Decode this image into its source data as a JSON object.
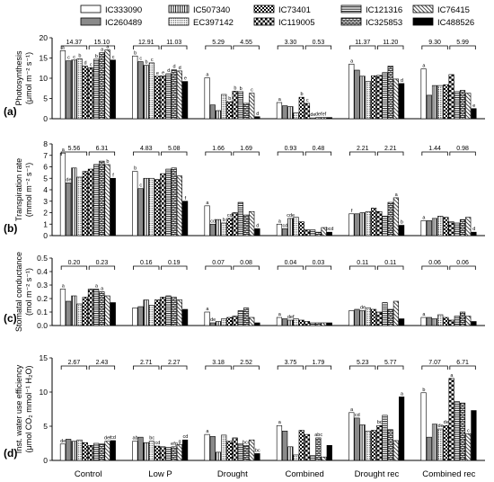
{
  "chart_data": {
    "type": "bar",
    "legend": {
      "placement": "top",
      "entries": [
        "IC333090",
        "IC507340",
        "IC73401",
        "IC121316",
        "IC76415",
        "IC260489",
        "EC397142",
        "IC119005",
        "IC325853",
        "IC488526"
      ]
    },
    "genotypes": [
      "IC333090",
      "IC260489",
      "IC507340",
      "EC397142",
      "IC73401",
      "IC119005",
      "IC121316",
      "IC325853",
      "IC76415",
      "IC488526"
    ],
    "categories": [
      "Control",
      "Low P",
      "Drought",
      "Combined",
      "Drought rec",
      "Combined rec"
    ],
    "panels": [
      {
        "id": "(a)",
        "ylabel": "Photosynthesis",
        "ylabel2": "(μmol m⁻² s⁻¹)",
        "ylim": [
          0,
          20
        ],
        "yticks": [
          "0",
          "5",
          "10",
          "15",
          "20"
        ],
        "brackets": [
          [
            "14.37",
            "15.10"
          ],
          [
            "12.91",
            "11.03"
          ],
          [
            "5.29",
            "4.55"
          ],
          [
            "3.30",
            "0.53"
          ],
          [
            "11.37",
            "11.20"
          ],
          [
            "9.30",
            "5.99"
          ]
        ],
        "values": [
          [
            16.8,
            14.3,
            14.5,
            14.8,
            13.0,
            12.6,
            14.7,
            16.3,
            17.0,
            14.5
          ],
          [
            15.5,
            14.1,
            13.2,
            13.8,
            10.5,
            10.6,
            11.1,
            12.1,
            11.8,
            9.2
          ],
          [
            10.1,
            3.4,
            2.0,
            6.0,
            4.2,
            6.8,
            6.7,
            3.8,
            6.3,
            0.5
          ],
          [
            4.0,
            3.2,
            3.0,
            1.4,
            5.3,
            3.8,
            0.2,
            0.3,
            0.3,
            0.3
          ],
          [
            13.5,
            12.0,
            10.5,
            9.2,
            10.6,
            10.7,
            11.4,
            13.0,
            9.8,
            8.7
          ],
          [
            12.3,
            5.8,
            8.2,
            8.2,
            8.4,
            10.9,
            6.7,
            7.0,
            6.3,
            2.5
          ]
        ],
        "letters": [
          [
            "a",
            "c",
            "c",
            "b",
            "d",
            "c",
            "b",
            "a",
            "a",
            "c"
          ],
          [
            "b",
            "c",
            "b",
            "c",
            "e",
            "e",
            "d",
            "d",
            "d",
            "e"
          ],
          [
            "a",
            "",
            "",
            "",
            "b",
            "b",
            "b",
            "",
            "c",
            "d"
          ],
          [
            "a",
            "",
            "",
            "",
            "b",
            "c",
            "de",
            "def",
            "ef",
            ""
          ],
          [
            "a",
            "",
            "",
            "",
            "",
            "",
            "",
            "",
            "",
            "d"
          ],
          [
            "a",
            "",
            "",
            "",
            "",
            "",
            "",
            "",
            "",
            "e"
          ]
        ]
      },
      {
        "id": "(b)",
        "ylabel": "Transpiration rate",
        "ylabel2": "(mmol m⁻² s⁻¹)",
        "ylim": [
          0,
          8
        ],
        "yticks": [
          "0",
          "1",
          "2",
          "3",
          "4",
          "5",
          "6",
          "7",
          "8"
        ],
        "brackets": [
          [
            "5.56",
            "6.31"
          ],
          [
            "4.83",
            "5.08"
          ],
          [
            "1.66",
            "1.69"
          ],
          [
            "0.93",
            "0.48"
          ],
          [
            "2.21",
            "2.21"
          ],
          [
            "1.44",
            "0.98"
          ]
        ],
        "values": [
          [
            7.2,
            4.6,
            5.9,
            5.1,
            5.6,
            5.8,
            6.2,
            6.5,
            6.2,
            5.0
          ],
          [
            5.6,
            4.1,
            5.0,
            5.0,
            4.9,
            5.4,
            5.8,
            5.9,
            5.2,
            3.0
          ],
          [
            2.6,
            1.0,
            1.4,
            1.1,
            1.5,
            2.0,
            2.9,
            1.8,
            2.1,
            0.6
          ],
          [
            1.0,
            0.6,
            1.5,
            1.6,
            1.2,
            0.5,
            0.5,
            0.3,
            0.7,
            0.3
          ],
          [
            1.9,
            1.9,
            2.0,
            2.1,
            2.4,
            2.1,
            1.7,
            2.9,
            3.3,
            0.9
          ],
          [
            1.3,
            1.3,
            1.5,
            1.7,
            1.6,
            1.2,
            1.1,
            1.4,
            1.6,
            0.3
          ]
        ],
        "letters": [
          [
            "a",
            "de",
            "",
            "",
            "",
            "",
            "",
            "",
            "b",
            "f"
          ],
          [
            "b",
            "c",
            "",
            "",
            "",
            "",
            "",
            "",
            "",
            "f"
          ],
          [
            "a",
            "cd",
            "",
            "b",
            "cd",
            "",
            "",
            "",
            "",
            "d"
          ],
          [
            "a",
            "cd",
            "cde",
            "",
            "",
            "",
            "",
            "",
            "",
            "bcd"
          ],
          [
            "f",
            "",
            "",
            "",
            "",
            "",
            "",
            "",
            "a",
            "b"
          ],
          [
            "a",
            "",
            "",
            "",
            "",
            "",
            "",
            "",
            "",
            "d"
          ]
        ]
      },
      {
        "id": "(c)",
        "ylabel": "Stomatal conductance",
        "ylabel2": "(mol m⁻² s⁻¹)",
        "ylim": [
          0,
          0.5
        ],
        "yticks": [
          "0.0",
          "0.1",
          "0.2",
          "0.3",
          "0.4",
          "0.5"
        ],
        "brackets": [
          [
            "0.20",
            "0.23"
          ],
          [
            "0.16",
            "0.19"
          ],
          [
            "0.07",
            "0.08"
          ],
          [
            "0.04",
            "0.03"
          ],
          [
            "0.11",
            "0.11"
          ],
          [
            "0.06",
            "0.06"
          ]
        ],
        "values": [
          [
            0.27,
            0.18,
            0.22,
            0.16,
            0.21,
            0.27,
            0.27,
            0.25,
            0.22,
            0.17
          ],
          [
            0.13,
            0.14,
            0.19,
            0.15,
            0.19,
            0.21,
            0.22,
            0.21,
            0.19,
            0.12
          ],
          [
            0.1,
            0.02,
            0.03,
            0.05,
            0.06,
            0.07,
            0.11,
            0.13,
            0.06,
            0.02
          ],
          [
            0.06,
            0.05,
            0.04,
            0.05,
            0.04,
            0.03,
            0.02,
            0.02,
            0.02,
            0.02
          ],
          [
            0.11,
            0.12,
            0.11,
            0.13,
            0.12,
            0.1,
            0.17,
            0.12,
            0.18,
            0.05
          ],
          [
            0.06,
            0.06,
            0.05,
            0.08,
            0.06,
            0.04,
            0.07,
            0.1,
            0.07,
            0.03
          ]
        ],
        "letters": [
          [
            "a",
            "",
            "",
            "",
            "",
            "",
            "a",
            "a",
            "",
            ""
          ],
          [
            "",
            "",
            "",
            "",
            "",
            "",
            "",
            "",
            "",
            ""
          ],
          [
            "a",
            "de",
            "",
            "",
            "",
            "",
            "",
            "",
            "",
            ""
          ],
          [
            "a",
            "",
            "def",
            "",
            "",
            "",
            "",
            "",
            "",
            ""
          ],
          [
            "",
            "",
            "de",
            "",
            "",
            "",
            "",
            "",
            "",
            ""
          ],
          [
            "a",
            "",
            "",
            "",
            "",
            "",
            "",
            "",
            "",
            ""
          ]
        ]
      },
      {
        "id": "(d)",
        "ylabel": "Inst. water use efficiency",
        "ylabel2": "(μmol CO₂ mmol⁻¹ H₂O)",
        "ylim": [
          0,
          15
        ],
        "yticks": [
          "0",
          "5",
          "10",
          "15"
        ],
        "brackets": [
          [
            "2.67",
            "2.43"
          ],
          [
            "2.71",
            "2.27"
          ],
          [
            "3.18",
            "2.52"
          ],
          [
            "3.75",
            "1.79"
          ],
          [
            "5.23",
            "5.77"
          ],
          [
            "7.07",
            "6.71"
          ]
        ],
        "values": [
          [
            2.4,
            3.1,
            2.8,
            3.0,
            2.6,
            2.2,
            2.5,
            2.4,
            2.8,
            2.9
          ],
          [
            2.8,
            3.4,
            2.6,
            2.8,
            2.1,
            2.0,
            1.9,
            2.0,
            2.3,
            3.0
          ],
          [
            3.8,
            3.5,
            1.2,
            3.7,
            2.8,
            3.3,
            2.4,
            2.2,
            3.0,
            1.0
          ],
          [
            5.1,
            4.3,
            2.0,
            0.8,
            4.4,
            3.8,
            0.7,
            3.3,
            0.5,
            2.2
          ],
          [
            7.0,
            6.2,
            5.2,
            4.3,
            4.4,
            5.1,
            6.6,
            4.5,
            2.9,
            9.3
          ],
          [
            9.9,
            3.4,
            5.3,
            4.6,
            5.1,
            12.0,
            8.6,
            8.4,
            3.9,
            7.3
          ]
        ],
        "letters": [
          [
            "de",
            "",
            "",
            "",
            "",
            "",
            "",
            "",
            "def",
            "cd"
          ],
          [
            "ab",
            "",
            "",
            "bc",
            "cd",
            "",
            "",
            "efg",
            "g",
            "cd"
          ],
          [
            "a",
            "",
            "",
            "",
            "",
            "",
            "",
            "bcd",
            "",
            "bc"
          ],
          [
            "a",
            "",
            "",
            "",
            "",
            "",
            "",
            "abc",
            "",
            ""
          ],
          [
            "a",
            "cd",
            "",
            "",
            "",
            "bc",
            "",
            "",
            "",
            "a"
          ],
          [
            "b",
            "",
            "",
            "de",
            "de",
            "a",
            "",
            "",
            "c",
            ""
          ]
        ]
      }
    ]
  }
}
